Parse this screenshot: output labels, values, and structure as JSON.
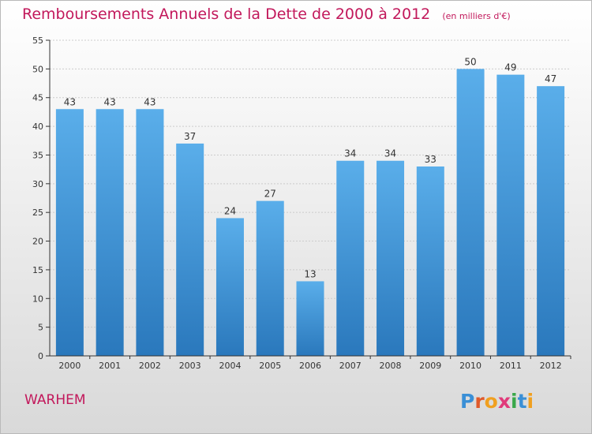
{
  "title": "Remboursements Annuels de la Dette de 2000 à 2012",
  "unit": "(en milliers d'€)",
  "commune": "WARHEM",
  "logo": "Proxiti",
  "colors": {
    "title": "#c2185b",
    "bar_top": "#5aaeea",
    "bar_bottom": "#2a78bc",
    "grid": "#cccccc",
    "axis": "#333333"
  },
  "chart_data": {
    "type": "bar",
    "title": "Remboursements Annuels de la Dette de 2000 à 2012",
    "xlabel": "",
    "ylabel": "",
    "ylim": [
      0,
      55
    ],
    "yticks": [
      0,
      5,
      10,
      15,
      20,
      25,
      30,
      35,
      40,
      45,
      50,
      55
    ],
    "grid": true,
    "categories": [
      "2000",
      "2001",
      "2002",
      "2003",
      "2004",
      "2005",
      "2006",
      "2007",
      "2008",
      "2009",
      "2010",
      "2011",
      "2012"
    ],
    "values": [
      43,
      43,
      43,
      37,
      24,
      27,
      13,
      34,
      34,
      33,
      50,
      49,
      47
    ]
  }
}
